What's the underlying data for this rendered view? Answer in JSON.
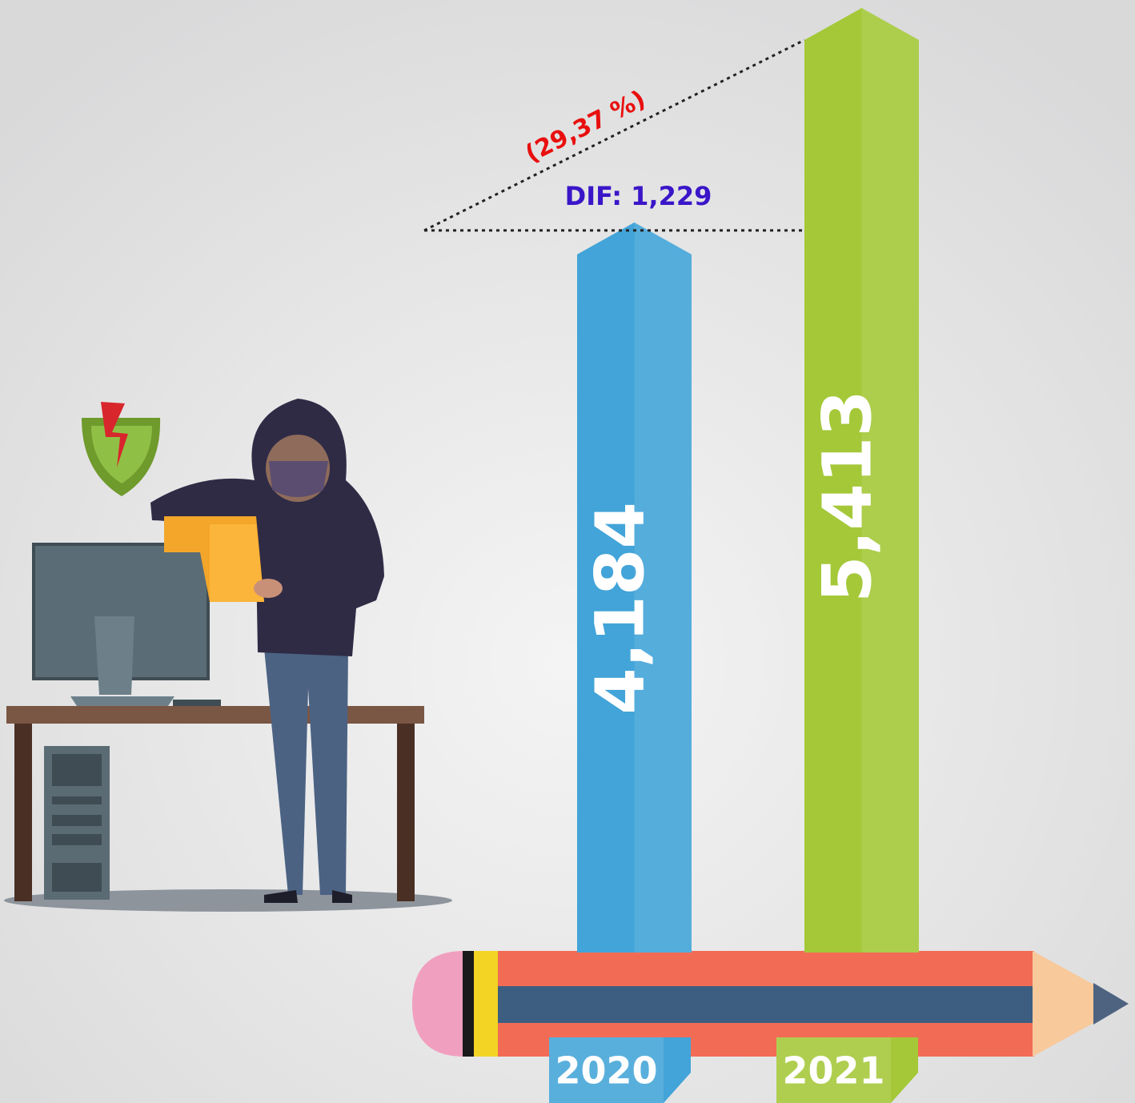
{
  "chart_data": {
    "type": "bar",
    "categories": [
      "2020",
      "2021"
    ],
    "values": [
      4184,
      5413
    ],
    "value_labels": [
      "4,184",
      "5,413"
    ],
    "colors": [
      "#42a4d8",
      "#a4c838"
    ],
    "annotations": [
      "DIF: 1,229",
      "(29,37 %)"
    ]
  }
}
